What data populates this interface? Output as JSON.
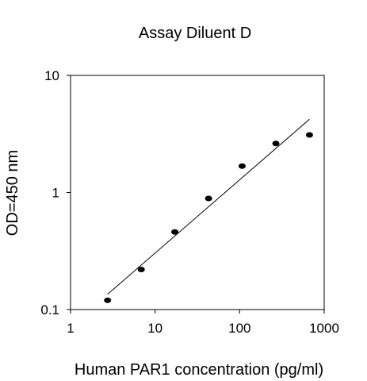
{
  "chart_data": {
    "type": "scatter",
    "title": "Assay Diluent D",
    "xlabel": "Human PAR1 concentration (pg/ml)",
    "ylabel": "OD=450 nm",
    "x_scale": "log",
    "y_scale": "log",
    "xlim": [
      1,
      1000
    ],
    "ylim": [
      0.1,
      10
    ],
    "x_ticks": [
      1,
      10,
      100,
      1000
    ],
    "y_ticks": [
      0.1,
      1,
      10
    ],
    "x_tick_labels": [
      "1",
      "10",
      "100",
      "1000"
    ],
    "y_tick_labels": [
      "0.1",
      "1",
      "10"
    ],
    "grid": false,
    "legend": "none",
    "series": [
      {
        "points": [
          {
            "x": 2.74,
            "y": 0.12
          },
          {
            "x": 6.86,
            "y": 0.22
          },
          {
            "x": 17.1,
            "y": 0.46
          },
          {
            "x": 42.9,
            "y": 0.89
          },
          {
            "x": 107,
            "y": 1.68
          },
          {
            "x": 268,
            "y": 2.62
          },
          {
            "x": 670,
            "y": 3.1
          }
        ]
      }
    ],
    "fit_line": {
      "type": "linear-in-log-log",
      "start": {
        "x": 2.74,
        "y": 0.135
      },
      "end": {
        "x": 670,
        "y": 4.22
      }
    },
    "colors": {
      "marker": "#000000",
      "line": "#000000",
      "axis": "#000000"
    }
  }
}
